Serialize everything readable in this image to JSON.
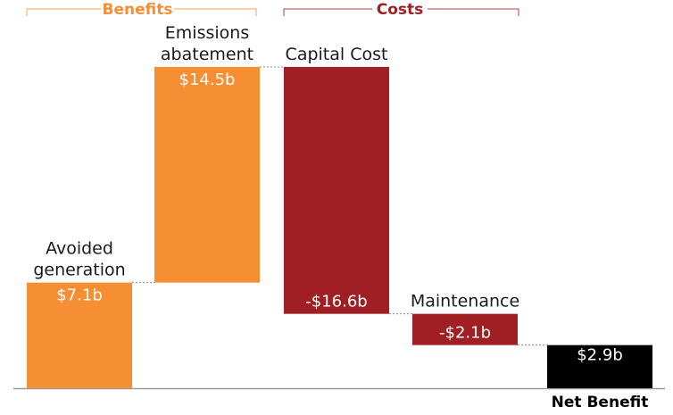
{
  "chart_data": {
    "type": "waterfall",
    "groups": [
      {
        "label": "Benefits",
        "color": "#f68e34"
      },
      {
        "label": "Costs",
        "color": "#a01f24"
      }
    ],
    "steps": [
      {
        "label_lines": [
          "Avoided",
          "generation"
        ],
        "value": 7.1,
        "value_label": "$7.1b",
        "group": "Benefits",
        "color": "#f68e34"
      },
      {
        "label_lines": [
          "Emissions",
          "abatement"
        ],
        "value": 14.5,
        "value_label": "$14.5b",
        "group": "Benefits",
        "color": "#f68e34"
      },
      {
        "label_lines": [
          "Capital Cost"
        ],
        "value": -16.6,
        "value_label": "-$16.6b",
        "group": "Costs",
        "color": "#a01f24"
      },
      {
        "label_lines": [
          "Maintenance"
        ],
        "value": -2.1,
        "value_label": "-$2.1b",
        "group": "Costs",
        "color": "#a01f24"
      }
    ],
    "total": {
      "label": "Net Benefit",
      "value": 2.9,
      "value_label": "$2.9b",
      "color": "#000000"
    },
    "ylim": [
      0,
      21.6
    ]
  }
}
